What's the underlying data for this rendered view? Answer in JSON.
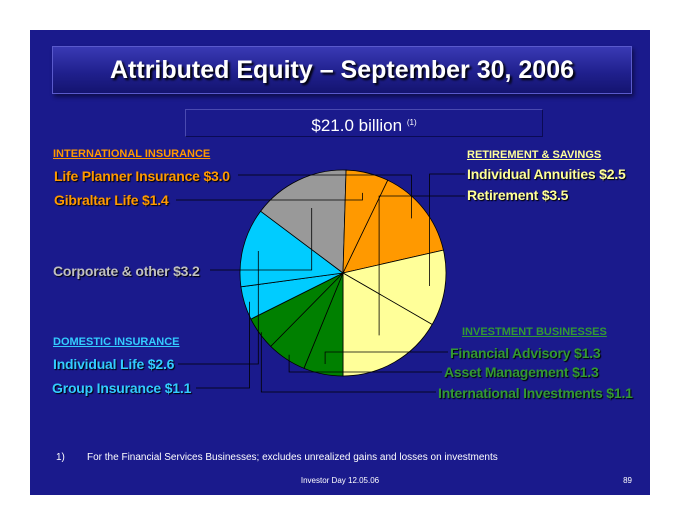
{
  "slide": {
    "title": "Attributed Equity – September 30, 2006",
    "total": "$21.0 billion",
    "total_note": "(1)",
    "footnote_number": "1)",
    "footnote": "For the Financial Services Businesses; excludes unrealized gains and losses on investments",
    "footer": "Investor Day 12.05.06",
    "page_number": "89"
  },
  "groups": {
    "international": "INTERNATIONAL INSURANCE",
    "retirement": "RETIREMENT & SAVINGS",
    "domestic": "DOMESTIC INSURANCE",
    "investment": "INVESTMENT BUSINESSES"
  },
  "labels": {
    "life_planner": "Life Planner Insurance $3.0",
    "gibraltar": "Gibraltar Life $1.4",
    "corporate": "Corporate & other $3.2",
    "individual_life": "Individual Life $2.6",
    "group_insurance": "Group Insurance $1.1",
    "individual_annuities": "Individual Annuities $2.5",
    "retirement": "Retirement $3.5",
    "financial_advisory": "Financial Advisory $1.3",
    "asset_management": "Asset Management $1.3",
    "international_investments": "International Investments $1.1"
  },
  "colors": {
    "background": "#1a1a8c",
    "international": "#ff9900",
    "retirement": "#ffff99",
    "investment": "#008000",
    "domestic": "#00ccff",
    "corporate": "#999999",
    "green_text": "#339933",
    "gray_text": "#c0c0c0"
  },
  "chart_data": {
    "type": "pie",
    "title": "Attributed Equity – September 30, 2006",
    "total": 21.0,
    "unit": "$ billion",
    "slices": [
      {
        "label": "Life Planner Insurance",
        "value": 3.0,
        "group": "INTERNATIONAL INSURANCE",
        "color": "#ff9900"
      },
      {
        "label": "Individual Annuities",
        "value": 2.5,
        "group": "RETIREMENT & SAVINGS",
        "color": "#ffff99"
      },
      {
        "label": "Retirement",
        "value": 3.5,
        "group": "RETIREMENT & SAVINGS",
        "color": "#ffff99"
      },
      {
        "label": "Financial Advisory",
        "value": 1.3,
        "group": "INVESTMENT BUSINESSES",
        "color": "#008000"
      },
      {
        "label": "Asset Management",
        "value": 1.3,
        "group": "INVESTMENT BUSINESSES",
        "color": "#008000"
      },
      {
        "label": "International Investments",
        "value": 1.1,
        "group": "INVESTMENT BUSINESSES",
        "color": "#008000"
      },
      {
        "label": "Group Insurance",
        "value": 1.1,
        "group": "DOMESTIC INSURANCE",
        "color": "#00ccff"
      },
      {
        "label": "Individual Life",
        "value": 2.6,
        "group": "DOMESTIC INSURANCE",
        "color": "#00ccff"
      },
      {
        "label": "Corporate & other",
        "value": 3.2,
        "group": "",
        "color": "#999999"
      },
      {
        "label": "Gibraltar Life",
        "value": 1.4,
        "group": "INTERNATIONAL INSURANCE",
        "color": "#ff9900"
      }
    ]
  }
}
